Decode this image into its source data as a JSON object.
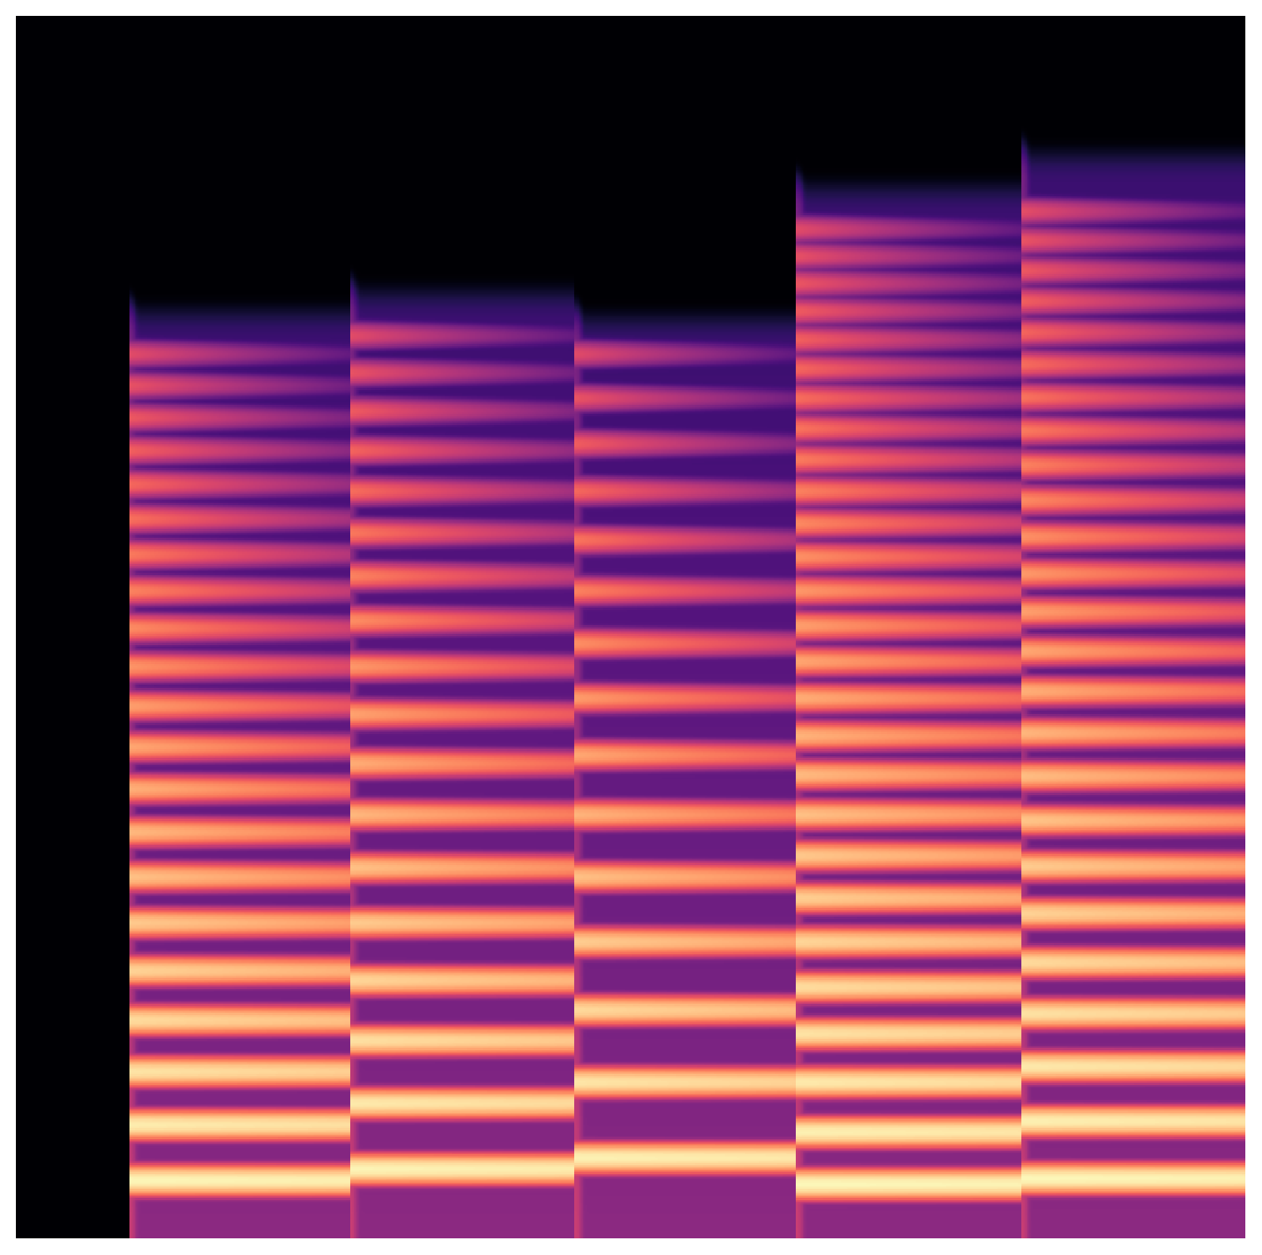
{
  "chart_data": {
    "type": "spectrogram",
    "tick_labels": false,
    "xlim": [
      0,
      100
    ],
    "ylim": [
      0,
      1000
    ],
    "notes": [
      {
        "start": 9.2,
        "end": 27.2,
        "f0": 30,
        "top": 643
      },
      {
        "start": 27.2,
        "end": 45.5,
        "f0": 36,
        "top": 662
      },
      {
        "start": 45.5,
        "end": 63.5,
        "f0": 42,
        "top": 637
      },
      {
        "start": 63.5,
        "end": 81.8,
        "f0": 28,
        "top": 770
      },
      {
        "start": 81.8,
        "end": 100,
        "f0": 31,
        "top": 805
      }
    ]
  }
}
